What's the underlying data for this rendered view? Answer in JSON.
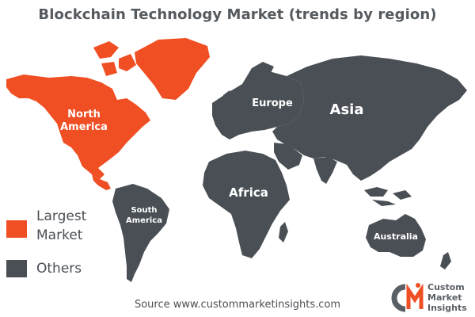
{
  "title": "Blockchain Technology Market (trends by region)",
  "colors": {
    "largest": "#f04e23",
    "others": "#4a4f56"
  },
  "regions": [
    {
      "name": "North America",
      "line1": "North",
      "line2": "America",
      "category": "largest"
    },
    {
      "name": "Europe",
      "line1": "Europe",
      "category": "others"
    },
    {
      "name": "Asia",
      "line1": "Asia",
      "category": "others"
    },
    {
      "name": "Africa",
      "line1": "Africa",
      "category": "others"
    },
    {
      "name": "South America",
      "line1": "South",
      "line2": "America",
      "category": "others"
    },
    {
      "name": "Australia",
      "line1": "Australia",
      "category": "others"
    }
  ],
  "legend": {
    "largest_line1": "Largest",
    "largest_line2": "Market",
    "others": "Others"
  },
  "source": "Source www.custommarketinsights.com",
  "logo": {
    "mark": "CMI",
    "line1": "Custom",
    "line2": "Market",
    "line3": "Insights"
  }
}
